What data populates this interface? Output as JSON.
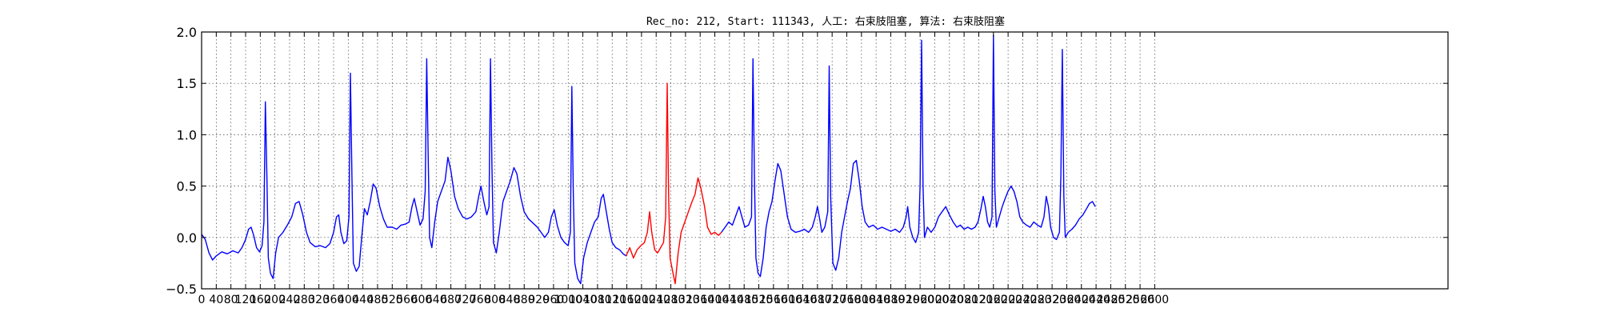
{
  "chart_data": {
    "type": "line",
    "title": "Rec_no: 212, Start: 111343, 人工: 右束肢阻塞, 算法: 右束肢阻塞",
    "xlabel": "",
    "ylabel": "",
    "xlim": [
      0,
      3400
    ],
    "ylim": [
      -0.5,
      2.0
    ],
    "grid": true,
    "y_ticks": [
      -0.5,
      0.0,
      0.5,
      1.0,
      1.5,
      2.0
    ],
    "y_tick_labels": [
      "−0.5",
      "0.0",
      "0.5",
      "1.0",
      "1.5",
      "2.0"
    ],
    "x_ticks": [
      0,
      40,
      80,
      120,
      160,
      200,
      240,
      280,
      320,
      360,
      400,
      440,
      480,
      520,
      560,
      600,
      640,
      680,
      720,
      760,
      800,
      840,
      880,
      920,
      960,
      1000,
      1040,
      1080,
      1120,
      1160,
      1200,
      1240,
      1280,
      1320,
      1360,
      1400,
      1440,
      1480,
      1520,
      1560,
      1600,
      1640,
      1680,
      1720,
      1760,
      1800,
      1840,
      1880,
      1920,
      1960,
      2000,
      2040,
      2080,
      2120,
      2160,
      2200,
      2240,
      2280,
      2320,
      2360,
      2400,
      2440,
      2480,
      2520,
      2560,
      2600
    ],
    "colors": {
      "base": "#0000ff",
      "highlight": "#ff0000"
    },
    "series": [
      {
        "color": "#0000ff",
        "points": [
          [
            0,
            0.03
          ],
          [
            10,
            -0.02
          ],
          [
            20,
            -0.15
          ],
          [
            30,
            -0.22
          ],
          [
            40,
            -0.18
          ],
          [
            55,
            -0.14
          ],
          [
            70,
            -0.16
          ],
          [
            85,
            -0.13
          ],
          [
            100,
            -0.15
          ],
          [
            110,
            -0.1
          ],
          [
            120,
            -0.02
          ],
          [
            128,
            0.08
          ],
          [
            135,
            0.1
          ],
          [
            142,
            0.02
          ],
          [
            150,
            -0.1
          ],
          [
            158,
            -0.14
          ],
          [
            165,
            -0.08
          ],
          [
            170,
            0.15
          ],
          [
            174,
            1.32
          ],
          [
            178,
            0.6
          ],
          [
            182,
            -0.2
          ],
          [
            188,
            -0.35
          ],
          [
            195,
            -0.4
          ],
          [
            202,
            -0.15
          ],
          [
            210,
            0.0
          ],
          [
            222,
            0.05
          ],
          [
            234,
            0.12
          ],
          [
            246,
            0.2
          ],
          [
            256,
            0.33
          ],
          [
            266,
            0.35
          ],
          [
            276,
            0.22
          ],
          [
            286,
            0.05
          ],
          [
            296,
            -0.05
          ],
          [
            310,
            -0.09
          ],
          [
            324,
            -0.08
          ],
          [
            338,
            -0.1
          ],
          [
            350,
            -0.06
          ],
          [
            360,
            0.05
          ],
          [
            368,
            0.2
          ],
          [
            374,
            0.22
          ],
          [
            380,
            0.05
          ],
          [
            388,
            -0.06
          ],
          [
            396,
            -0.03
          ],
          [
            402,
            0.2
          ],
          [
            406,
            1.6
          ],
          [
            410,
            0.6
          ],
          [
            414,
            -0.25
          ],
          [
            422,
            -0.33
          ],
          [
            430,
            -0.28
          ],
          [
            438,
            0.05
          ],
          [
            444,
            0.28
          ],
          [
            452,
            0.22
          ],
          [
            460,
            0.35
          ],
          [
            468,
            0.52
          ],
          [
            476,
            0.48
          ],
          [
            486,
            0.3
          ],
          [
            496,
            0.18
          ],
          [
            506,
            0.1
          ],
          [
            520,
            0.1
          ],
          [
            532,
            0.08
          ],
          [
            544,
            0.12
          ],
          [
            556,
            0.13
          ],
          [
            566,
            0.15
          ],
          [
            574,
            0.3
          ],
          [
            580,
            0.38
          ],
          [
            588,
            0.25
          ],
          [
            596,
            0.12
          ],
          [
            604,
            0.18
          ],
          [
            610,
            0.45
          ],
          [
            614,
            1.74
          ],
          [
            618,
            0.8
          ],
          [
            622,
            0.0
          ],
          [
            628,
            -0.1
          ],
          [
            636,
            0.15
          ],
          [
            644,
            0.35
          ],
          [
            654,
            0.45
          ],
          [
            664,
            0.55
          ],
          [
            672,
            0.78
          ],
          [
            680,
            0.65
          ],
          [
            690,
            0.4
          ],
          [
            700,
            0.28
          ],
          [
            712,
            0.2
          ],
          [
            724,
            0.18
          ],
          [
            736,
            0.2
          ],
          [
            748,
            0.25
          ],
          [
            756,
            0.4
          ],
          [
            762,
            0.5
          ],
          [
            770,
            0.35
          ],
          [
            778,
            0.22
          ],
          [
            784,
            0.3
          ],
          [
            788,
            1.74
          ],
          [
            792,
            0.7
          ],
          [
            796,
            -0.05
          ],
          [
            804,
            -0.15
          ],
          [
            812,
            0.05
          ],
          [
            822,
            0.35
          ],
          [
            832,
            0.45
          ],
          [
            842,
            0.55
          ],
          [
            852,
            0.68
          ],
          [
            860,
            0.62
          ],
          [
            870,
            0.4
          ],
          [
            880,
            0.25
          ],
          [
            892,
            0.18
          ],
          [
            904,
            0.14
          ],
          [
            916,
            0.1
          ],
          [
            926,
            0.05
          ],
          [
            936,
            0.0
          ],
          [
            946,
            0.05
          ],
          [
            954,
            0.2
          ],
          [
            962,
            0.27
          ],
          [
            970,
            0.12
          ],
          [
            980,
            0.0
          ],
          [
            990,
            -0.05
          ],
          [
            1000,
            -0.08
          ],
          [
            1006,
            0.05
          ],
          [
            1010,
            1.47
          ],
          [
            1014,
            0.4
          ],
          [
            1018,
            -0.25
          ],
          [
            1026,
            -0.4
          ],
          [
            1034,
            -0.45
          ],
          [
            1042,
            -0.2
          ],
          [
            1052,
            -0.05
          ],
          [
            1062,
            0.05
          ],
          [
            1072,
            0.15
          ],
          [
            1082,
            0.2
          ],
          [
            1090,
            0.38
          ],
          [
            1096,
            0.42
          ],
          [
            1104,
            0.25
          ],
          [
            1112,
            0.08
          ],
          [
            1120,
            -0.05
          ],
          [
            1130,
            -0.1
          ],
          [
            1140,
            -0.12
          ],
          [
            1150,
            -0.16
          ],
          [
            1158,
            -0.18
          ]
        ]
      },
      {
        "color": "#ff0000",
        "points": [
          [
            1158,
            -0.18
          ],
          [
            1168,
            -0.1
          ],
          [
            1178,
            -0.2
          ],
          [
            1188,
            -0.12
          ],
          [
            1198,
            -0.08
          ],
          [
            1208,
            -0.05
          ],
          [
            1216,
            0.05
          ],
          [
            1222,
            0.25
          ],
          [
            1228,
            0.05
          ],
          [
            1236,
            -0.12
          ],
          [
            1244,
            -0.15
          ],
          [
            1252,
            -0.1
          ],
          [
            1260,
            -0.05
          ],
          [
            1266,
            0.2
          ],
          [
            1270,
            1.5
          ],
          [
            1274,
            0.4
          ],
          [
            1278,
            -0.2
          ],
          [
            1286,
            -0.35
          ],
          [
            1292,
            -0.45
          ],
          [
            1300,
            -0.15
          ],
          [
            1308,
            0.05
          ],
          [
            1318,
            0.15
          ],
          [
            1328,
            0.25
          ],
          [
            1338,
            0.35
          ],
          [
            1346,
            0.42
          ],
          [
            1354,
            0.58
          ],
          [
            1362,
            0.48
          ],
          [
            1372,
            0.3
          ],
          [
            1380,
            0.1
          ],
          [
            1390,
            0.03
          ],
          [
            1400,
            0.05
          ],
          [
            1410,
            0.02
          ],
          [
            1418,
            0.05
          ]
        ]
      },
      {
        "color": "#0000ff",
        "points": [
          [
            1418,
            0.05
          ],
          [
            1428,
            0.1
          ],
          [
            1438,
            0.15
          ],
          [
            1448,
            0.12
          ],
          [
            1458,
            0.22
          ],
          [
            1466,
            0.3
          ],
          [
            1474,
            0.2
          ],
          [
            1482,
            0.1
          ],
          [
            1492,
            0.12
          ],
          [
            1500,
            0.2
          ],
          [
            1504,
            1.74
          ],
          [
            1508,
            0.6
          ],
          [
            1512,
            -0.2
          ],
          [
            1518,
            -0.35
          ],
          [
            1524,
            -0.38
          ],
          [
            1532,
            -0.2
          ],
          [
            1540,
            0.1
          ],
          [
            1548,
            0.25
          ],
          [
            1556,
            0.35
          ],
          [
            1564,
            0.55
          ],
          [
            1572,
            0.72
          ],
          [
            1580,
            0.65
          ],
          [
            1590,
            0.4
          ],
          [
            1598,
            0.2
          ],
          [
            1608,
            0.08
          ],
          [
            1620,
            0.05
          ],
          [
            1632,
            0.06
          ],
          [
            1644,
            0.08
          ],
          [
            1656,
            0.05
          ],
          [
            1666,
            0.1
          ],
          [
            1674,
            0.2
          ],
          [
            1680,
            0.3
          ],
          [
            1686,
            0.18
          ],
          [
            1692,
            0.05
          ],
          [
            1700,
            0.1
          ],
          [
            1708,
            0.25
          ],
          [
            1712,
            1.67
          ],
          [
            1716,
            0.4
          ],
          [
            1722,
            -0.25
          ],
          [
            1730,
            -0.32
          ],
          [
            1738,
            -0.2
          ],
          [
            1746,
            0.05
          ],
          [
            1754,
            0.2
          ],
          [
            1762,
            0.35
          ],
          [
            1770,
            0.48
          ],
          [
            1778,
            0.72
          ],
          [
            1786,
            0.75
          ],
          [
            1794,
            0.55
          ],
          [
            1802,
            0.3
          ],
          [
            1810,
            0.15
          ],
          [
            1820,
            0.1
          ],
          [
            1832,
            0.12
          ],
          [
            1844,
            0.08
          ],
          [
            1856,
            0.1
          ],
          [
            1868,
            0.08
          ],
          [
            1880,
            0.06
          ],
          [
            1892,
            0.08
          ],
          [
            1904,
            0.05
          ],
          [
            1914,
            0.1
          ],
          [
            1922,
            0.2
          ],
          [
            1926,
            0.3
          ],
          [
            1932,
            0.1
          ],
          [
            1940,
            0.0
          ],
          [
            1948,
            -0.05
          ],
          [
            1956,
            0.05
          ],
          [
            1960,
            0.5
          ],
          [
            1964,
            1.92
          ],
          [
            1968,
            0.5
          ],
          [
            1972,
            0.0
          ],
          [
            1980,
            0.1
          ],
          [
            1990,
            0.05
          ],
          [
            2000,
            0.1
          ],
          [
            2010,
            0.2
          ],
          [
            2020,
            0.25
          ],
          [
            2030,
            0.3
          ],
          [
            2040,
            0.22
          ],
          [
            2050,
            0.15
          ],
          [
            2060,
            0.1
          ],
          [
            2070,
            0.12
          ],
          [
            2080,
            0.08
          ],
          [
            2090,
            0.1
          ],
          [
            2100,
            0.08
          ],
          [
            2110,
            0.1
          ],
          [
            2118,
            0.15
          ],
          [
            2126,
            0.28
          ],
          [
            2132,
            0.4
          ],
          [
            2138,
            0.3
          ],
          [
            2144,
            0.15
          ],
          [
            2150,
            0.1
          ],
          [
            2156,
            0.2
          ],
          [
            2160,
            1.97
          ],
          [
            2164,
            0.45
          ],
          [
            2168,
            0.1
          ],
          [
            2176,
            0.2
          ],
          [
            2184,
            0.3
          ],
          [
            2192,
            0.38
          ],
          [
            2200,
            0.45
          ],
          [
            2208,
            0.5
          ],
          [
            2216,
            0.45
          ],
          [
            2224,
            0.35
          ],
          [
            2232,
            0.2
          ],
          [
            2240,
            0.15
          ],
          [
            2250,
            0.12
          ],
          [
            2260,
            0.1
          ],
          [
            2270,
            0.15
          ],
          [
            2280,
            0.12
          ],
          [
            2290,
            0.1
          ],
          [
            2298,
            0.2
          ],
          [
            2304,
            0.4
          ],
          [
            2310,
            0.3
          ],
          [
            2316,
            0.1
          ],
          [
            2324,
            0.0
          ],
          [
            2332,
            -0.02
          ],
          [
            2340,
            0.05
          ],
          [
            2344,
            0.6
          ],
          [
            2348,
            1.83
          ],
          [
            2352,
            0.4
          ],
          [
            2356,
            0.0
          ],
          [
            2364,
            0.05
          ],
          [
            2374,
            0.08
          ],
          [
            2384,
            0.12
          ],
          [
            2394,
            0.18
          ],
          [
            2404,
            0.22
          ],
          [
            2414,
            0.28
          ],
          [
            2422,
            0.33
          ],
          [
            2430,
            0.35
          ],
          [
            2438,
            0.3
          ]
        ]
      }
    ]
  }
}
